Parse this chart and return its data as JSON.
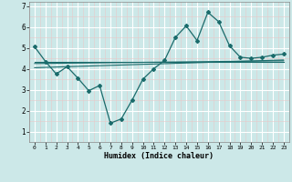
{
  "title": "",
  "xlabel": "Humidex (Indice chaleur)",
  "bg_color": "#cce8e8",
  "line_color": "#1a6b6b",
  "grid_major_color": "#ffffff",
  "grid_minor_color": "#e8c8c8",
  "xlim": [
    -0.5,
    23.5
  ],
  "ylim": [
    0.5,
    7.2
  ],
  "yticks": [
    1,
    2,
    3,
    4,
    5,
    6,
    7
  ],
  "xticks": [
    0,
    1,
    2,
    3,
    4,
    5,
    6,
    7,
    8,
    9,
    10,
    11,
    12,
    13,
    14,
    15,
    16,
    17,
    18,
    19,
    20,
    21,
    22,
    23
  ],
  "main_x": [
    0,
    1,
    2,
    3,
    4,
    5,
    6,
    7,
    8,
    9,
    10,
    11,
    12,
    13,
    14,
    15,
    16,
    17,
    18,
    19,
    20,
    21,
    22,
    23
  ],
  "main_y": [
    5.05,
    4.35,
    3.75,
    4.1,
    3.55,
    2.95,
    3.2,
    1.4,
    1.6,
    2.5,
    3.5,
    4.0,
    4.4,
    5.5,
    6.05,
    5.35,
    6.7,
    6.25,
    5.1,
    4.55,
    4.5,
    4.55,
    4.65,
    4.7
  ],
  "trend1_x": [
    0,
    23
  ],
  "trend1_y": [
    4.05,
    4.42
  ],
  "trend2_x": [
    0,
    23
  ],
  "trend2_y": [
    4.25,
    4.38
  ],
  "trend3_x": [
    0,
    23
  ],
  "trend3_y": [
    4.35,
    4.35
  ]
}
